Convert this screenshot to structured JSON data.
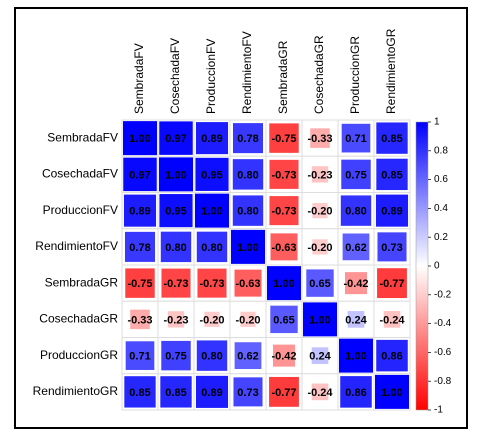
{
  "chart_data": {
    "type": "corrplot",
    "categories": [
      "SembradaFV",
      "CosechadaFV",
      "ProduccionFV",
      "RendimientoFV",
      "SembradaGR",
      "CosechadaGR",
      "ProduccionGR",
      "RendimientoGR"
    ],
    "values": [
      [
        1,
        0.97,
        0.89,
        0.78,
        -0.75,
        -0.33,
        0.71,
        0.85
      ],
      [
        0.97,
        1,
        0.95,
        0.8,
        -0.73,
        -0.23,
        0.75,
        0.85
      ],
      [
        0.89,
        0.95,
        1,
        0.8,
        -0.73,
        -0.2,
        0.8,
        0.89
      ],
      [
        0.78,
        0.8,
        0.8,
        1,
        -0.63,
        -0.2,
        0.62,
        0.73
      ],
      [
        -0.75,
        -0.73,
        -0.73,
        -0.63,
        1,
        0.65,
        -0.42,
        -0.77
      ],
      [
        -0.33,
        -0.23,
        -0.2,
        -0.2,
        0.65,
        1,
        0.24,
        -0.24
      ],
      [
        0.71,
        0.75,
        0.8,
        0.62,
        -0.42,
        0.24,
        1,
        0.86
      ],
      [
        0.85,
        0.85,
        0.89,
        0.73,
        -0.77,
        -0.24,
        0.86,
        1
      ]
    ],
    "value_labels": [
      [
        "1.00",
        "0.97",
        "0.89",
        "0.78",
        "-0.75",
        "-0.33",
        "0.71",
        "0.85"
      ],
      [
        "0.97",
        "1.00",
        "0.95",
        "0.80",
        "-0.73",
        "-0.23",
        "0.75",
        "0.85"
      ],
      [
        "0.89",
        "0.95",
        "1.00",
        "0.80",
        "-0.73",
        "-0.20",
        "0.80",
        "0.89"
      ],
      [
        "0.78",
        "0.80",
        "0.80",
        "1.00",
        "-0.63",
        "-0.20",
        "0.62",
        "0.73"
      ],
      [
        "-0.75",
        "-0.73",
        "-0.73",
        "-0.63",
        "1.00",
        "0.65",
        "-0.42",
        "-0.77"
      ],
      [
        "-0.33",
        "-0.23",
        "-0.20",
        "-0.20",
        "0.65",
        "1.00",
        "0.24",
        "-0.24"
      ],
      [
        "0.71",
        "0.75",
        "0.80",
        "0.62",
        "-0.42",
        "0.24",
        "1.00",
        "0.86"
      ],
      [
        "0.85",
        "0.85",
        "0.89",
        "0.73",
        "-0.77",
        "-0.24",
        "0.86",
        "1.00"
      ]
    ],
    "colors": [
      "#ff0000",
      "#ffffff",
      "#0000ff"
    ],
    "zlim": [
      -1,
      1
    ],
    "zticks": [
      1,
      0.8,
      0.6,
      0.4,
      0.2,
      0,
      -0.2,
      -0.4,
      -0.6,
      -0.8,
      -1
    ]
  }
}
